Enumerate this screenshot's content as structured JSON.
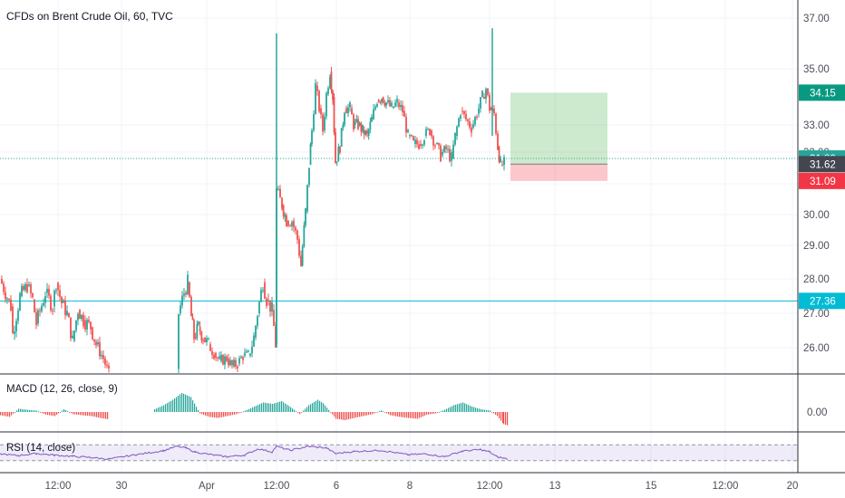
{
  "header": {
    "title": "CFDs on Brent Crude Oil, 60, TVC"
  },
  "macd_label": "MACD (12, 26, close, 9)",
  "rsi_label": "RSI (14, close)",
  "chart_data": [
    {
      "type": "candlestick",
      "title": "CFDs on Brent Crude Oil, 60, TVC",
      "ylim": [
        25.05,
        37.55
      ],
      "y_ticks": [
        "26.00",
        "27.00",
        "28.00",
        "29.00",
        "30.00",
        "31.00",
        "32.00",
        "33.00",
        "35.00",
        "37.00"
      ],
      "x_ticks": [
        "12:00",
        "30",
        "Apr",
        "12:00",
        "6",
        "8",
        "12:00",
        "13",
        "15",
        "12:00",
        "20"
      ],
      "price_tags": [
        {
          "label": "34.15",
          "value": 34.15,
          "color": "#089981"
        },
        {
          "label": "31.80",
          "value": 31.8,
          "color": "#26a69a"
        },
        {
          "label": "31.62",
          "value": 31.62,
          "color": "#434651"
        },
        {
          "label": "31.09",
          "value": 31.09,
          "color": "#f23645"
        },
        {
          "label": "27.36",
          "value": 27.36,
          "color": "#00bcd4"
        }
      ],
      "horizontal_lines": [
        {
          "value": 31.8,
          "style": "dotted",
          "color": "#26a69a"
        },
        {
          "value": 27.36,
          "style": "solid",
          "color": "#00bcd4"
        }
      ],
      "position_tool": {
        "entry": 31.62,
        "target": 34.15,
        "stop": 31.09
      },
      "up_color": "#26a69a",
      "down_color": "#ef5350",
      "ohlc_path": [
        [
          0,
          28.0
        ],
        [
          12,
          27.2
        ],
        [
          14,
          26.4
        ],
        [
          22,
          27.5
        ],
        [
          30,
          27.8
        ],
        [
          36,
          27.4
        ],
        [
          40,
          26.7
        ],
        [
          50,
          27.6
        ],
        [
          58,
          27.2
        ],
        [
          62,
          27.9
        ],
        [
          68,
          27.3
        ],
        [
          74,
          27.0
        ],
        [
          80,
          26.2
        ],
        [
          86,
          27.1
        ],
        [
          92,
          26.8
        ],
        [
          100,
          26.6
        ],
        [
          106,
          26.1
        ],
        [
          114,
          25.6
        ],
        [
          120,
          25.0
        ],
        [
          196,
          25.2
        ],
        [
          197,
          27.0
        ],
        [
          203,
          27.6
        ],
        [
          207,
          27.9
        ],
        [
          211,
          26.9
        ],
        [
          214,
          26.3
        ],
        [
          219,
          26.6
        ],
        [
          224,
          26.3
        ],
        [
          230,
          26.1
        ],
        [
          236,
          25.8
        ],
        [
          242,
          25.5
        ],
        [
          250,
          25.6
        ],
        [
          256,
          25.3
        ],
        [
          262,
          25.4
        ],
        [
          268,
          25.7
        ],
        [
          274,
          25.7
        ],
        [
          280,
          26.3
        ],
        [
          284,
          27.0
        ],
        [
          290,
          27.9
        ],
        [
          294,
          27.4
        ],
        [
          300,
          27.1
        ],
        [
          304,
          26.1
        ],
        [
          305,
          30.8
        ],
        [
          311,
          30.3
        ],
        [
          316,
          29.8
        ],
        [
          322,
          29.8
        ],
        [
          328,
          29.2
        ],
        [
          332,
          28.4
        ],
        [
          337,
          30.1
        ],
        [
          341,
          31.6
        ],
        [
          344,
          32.8
        ],
        [
          348,
          34.4
        ],
        [
          352,
          33.6
        ],
        [
          356,
          32.8
        ],
        [
          360,
          34.1
        ],
        [
          364,
          34.9
        ],
        [
          367,
          34.0
        ],
        [
          370,
          31.7
        ],
        [
          375,
          32.2
        ],
        [
          380,
          33.6
        ],
        [
          386,
          33.6
        ],
        [
          390,
          33.0
        ],
        [
          395,
          33.0
        ],
        [
          400,
          32.8
        ],
        [
          405,
          32.6
        ],
        [
          410,
          33.2
        ],
        [
          416,
          33.9
        ],
        [
          421,
          34.0
        ],
        [
          426,
          33.8
        ],
        [
          432,
          33.6
        ],
        [
          438,
          33.8
        ],
        [
          444,
          33.5
        ],
        [
          450,
          32.6
        ],
        [
          456,
          32.3
        ],
        [
          462,
          32.3
        ],
        [
          468,
          32.6
        ],
        [
          474,
          32.8
        ],
        [
          480,
          32.3
        ],
        [
          486,
          31.9
        ],
        [
          492,
          32.1
        ],
        [
          498,
          31.8
        ],
        [
          502,
          32.6
        ],
        [
          508,
          33.5
        ],
        [
          514,
          33.2
        ],
        [
          520,
          32.9
        ],
        [
          526,
          33.4
        ],
        [
          532,
          34.0
        ],
        [
          536,
          34.3
        ],
        [
          540,
          33.6
        ],
        [
          545,
          33.4
        ],
        [
          549,
          32.2
        ],
        [
          552,
          31.6
        ],
        [
          556,
          31.62
        ]
      ],
      "spikes": [
        {
          "x": 305,
          "high": 36.4,
          "low": 26.0
        },
        {
          "x": 543,
          "high": 36.6,
          "low": 32.6
        }
      ]
    },
    {
      "type": "bar",
      "title": "MACD (12, 26, close, 9)",
      "y_ticks": [
        "0.00"
      ],
      "histogram": [
        [
          0,
          -0.12
        ],
        [
          10,
          -0.18
        ],
        [
          20,
          0.12
        ],
        [
          30,
          0.08
        ],
        [
          40,
          0.05
        ],
        [
          50,
          -0.1
        ],
        [
          60,
          -0.15
        ],
        [
          70,
          0.1
        ],
        [
          80,
          -0.08
        ],
        [
          90,
          -0.12
        ],
        [
          100,
          -0.15
        ],
        [
          110,
          -0.22
        ],
        [
          120,
          -0.28
        ],
        [
          170,
          0.1
        ],
        [
          180,
          0.25
        ],
        [
          190,
          0.45
        ],
        [
          200,
          0.7
        ],
        [
          210,
          0.55
        ],
        [
          220,
          -0.05
        ],
        [
          230,
          -0.18
        ],
        [
          240,
          -0.22
        ],
        [
          250,
          -0.15
        ],
        [
          260,
          -0.08
        ],
        [
          270,
          0.05
        ],
        [
          280,
          0.2
        ],
        [
          290,
          0.35
        ],
        [
          300,
          0.3
        ],
        [
          310,
          0.4
        ],
        [
          320,
          0.18
        ],
        [
          330,
          -0.08
        ],
        [
          340,
          0.25
        ],
        [
          350,
          0.45
        ],
        [
          356,
          0.32
        ],
        [
          370,
          -0.25
        ],
        [
          380,
          -0.3
        ],
        [
          390,
          -0.22
        ],
        [
          400,
          -0.15
        ],
        [
          410,
          -0.08
        ],
        [
          420,
          0.06
        ],
        [
          430,
          -0.12
        ],
        [
          440,
          -0.18
        ],
        [
          450,
          -0.22
        ],
        [
          460,
          -0.25
        ],
        [
          470,
          -0.1
        ],
        [
          480,
          -0.05
        ],
        [
          490,
          0.08
        ],
        [
          500,
          0.25
        ],
        [
          510,
          0.35
        ],
        [
          520,
          0.2
        ],
        [
          530,
          0.1
        ],
        [
          540,
          0.05
        ],
        [
          548,
          -0.15
        ],
        [
          555,
          -0.45
        ],
        [
          560,
          -0.5
        ]
      ]
    },
    {
      "type": "line",
      "title": "RSI (14, close)",
      "ylim": [
        0,
        100
      ],
      "bands": [
        30,
        70
      ],
      "line_color": "#7e57c2",
      "values": [
        [
          0,
          47
        ],
        [
          20,
          43
        ],
        [
          40,
          48
        ],
        [
          60,
          44
        ],
        [
          80,
          41
        ],
        [
          100,
          38
        ],
        [
          120,
          34
        ],
        [
          150,
          45
        ],
        [
          180,
          55
        ],
        [
          195,
          66
        ],
        [
          205,
          62
        ],
        [
          215,
          52
        ],
        [
          230,
          46
        ],
        [
          250,
          40
        ],
        [
          270,
          44
        ],
        [
          285,
          60
        ],
        [
          300,
          52
        ],
        [
          305,
          66
        ],
        [
          320,
          56
        ],
        [
          340,
          66
        ],
        [
          360,
          62
        ],
        [
          370,
          48
        ],
        [
          390,
          53
        ],
        [
          420,
          56
        ],
        [
          450,
          45
        ],
        [
          470,
          47
        ],
        [
          490,
          40
        ],
        [
          510,
          54
        ],
        [
          530,
          58
        ],
        [
          540,
          52
        ],
        [
          548,
          40
        ],
        [
          560,
          34
        ]
      ]
    }
  ]
}
